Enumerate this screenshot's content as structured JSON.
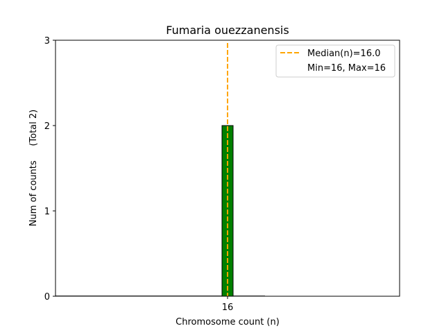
{
  "chart_data": {
    "type": "bar",
    "title": "Fumaria ouezzanensis",
    "xlabel": "Chromosome count (n)",
    "ylabel": "Num of counts     (Total 2)",
    "categories": [
      "16"
    ],
    "x": [
      16
    ],
    "values": [
      2
    ],
    "ylim": [
      0,
      3
    ],
    "yticks": [
      "0",
      "1",
      "2",
      "3"
    ],
    "xticks": [
      "16"
    ],
    "median": 16.0,
    "grid": false,
    "legend_placement": "top-right",
    "legend": [
      "Median(n)=16.0",
      "Min=16, Max=16"
    ],
    "colors": {
      "bar": "#008000",
      "bar_edge": "#000000",
      "median": "#ffa500"
    }
  }
}
